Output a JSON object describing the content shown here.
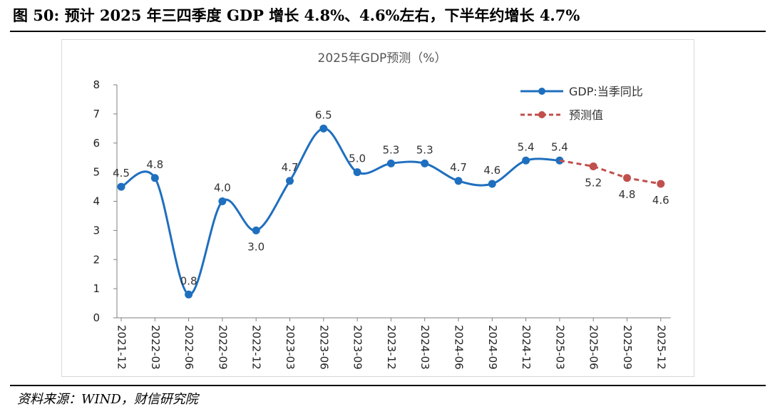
{
  "figure": {
    "title": "图 50:  预计 2025 年三四季度 GDP 增长 4.8%、4.6%左右，下半年约增长 4.7%",
    "source": "资料来源：WIND，财信研究院"
  },
  "colors": {
    "actual": "#1f6fbf",
    "forecast": "#c0504d",
    "axis": "#7f7f7f"
  },
  "chart_data": {
    "type": "line",
    "title": "2025年GDP预测（%）",
    "categories": [
      "2021-12",
      "2022-03",
      "2022-06",
      "2022-09",
      "2022-12",
      "2023-03",
      "2023-06",
      "2023-09",
      "2023-12",
      "2024-03",
      "2024-06",
      "2024-09",
      "2024-12",
      "2025-03",
      "2025-06",
      "2025-09",
      "2025-12"
    ],
    "ylim": [
      0,
      8
    ],
    "yticks": [
      "0",
      "1",
      "2",
      "3",
      "4",
      "5",
      "6",
      "7",
      "8"
    ],
    "grid": false,
    "legend_position": "top-right",
    "series": [
      {
        "name": "GDP:当季同比",
        "style": "solid-smooth",
        "values": [
          4.5,
          4.8,
          0.8,
          4.0,
          3.0,
          4.7,
          6.5,
          5.0,
          5.3,
          5.3,
          4.7,
          4.6,
          5.4,
          5.4,
          null,
          null,
          null
        ],
        "labels": [
          "4.5",
          "4.8",
          "0.8",
          "4.0",
          "3.0",
          "4.7",
          "6.5",
          "5.0",
          "5.3",
          "5.3",
          "4.7",
          "4.6",
          "5.4",
          "5.4",
          null,
          null,
          null
        ]
      },
      {
        "name": "预测值",
        "style": "dashed",
        "values": [
          null,
          null,
          null,
          null,
          null,
          null,
          null,
          null,
          null,
          null,
          null,
          null,
          null,
          5.4,
          5.2,
          4.8,
          4.6
        ],
        "labels": [
          null,
          null,
          null,
          null,
          null,
          null,
          null,
          null,
          null,
          null,
          null,
          null,
          null,
          null,
          "5.2",
          "4.8",
          "4.6"
        ]
      }
    ]
  }
}
